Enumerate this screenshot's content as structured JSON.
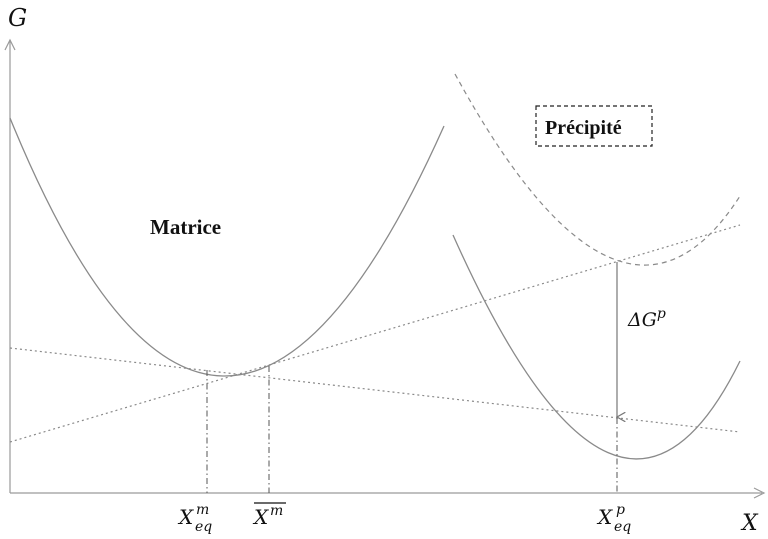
{
  "axes": {
    "y_label": "G",
    "x_label": "X"
  },
  "regions": {
    "matrix_label": "Matrice",
    "precipitate_label": "Précipité"
  },
  "annotations": {
    "delta_g_base": "ΔG",
    "delta_g_sup": "p"
  },
  "ticks": {
    "x_eq_m": {
      "base": "X",
      "sup": "m",
      "sub": "eq"
    },
    "x_bar_m": {
      "base": "X",
      "sup": "m"
    },
    "x_eq_p": {
      "base": "X",
      "sup": "p",
      "sub": "eq"
    }
  },
  "colors": {
    "curve": "#8a8a8a",
    "text": "#111111"
  }
}
